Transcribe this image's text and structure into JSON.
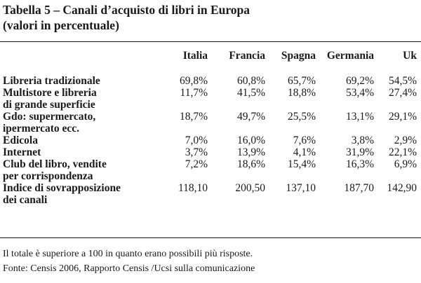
{
  "title": {
    "line1": "Tabella 5 – Canali d’acquisto di libri in Europa",
    "line2": "(valori in percentuale)"
  },
  "table": {
    "columns": [
      "",
      "Italia",
      "Francia",
      "Spagna",
      "Germania",
      "Uk"
    ],
    "rows": [
      {
        "label1": "Libreria tradizionale",
        "label2": "",
        "values": [
          "69,8%",
          "60,8%",
          "65,7%",
          "69,2%",
          "54,5%"
        ]
      },
      {
        "label1": "Multistore e libreria",
        "label2": "di grande superficie",
        "values": [
          "11,7%",
          "41,5%",
          "18,8%",
          "53,4%",
          "27,4%"
        ]
      },
      {
        "label1": "Gdo: supermercato,",
        "label2": "ipermercato ecc.",
        "values": [
          "18,7%",
          "49,7%",
          "25,5%",
          "13,1%",
          "29,1%"
        ]
      },
      {
        "label1": "Edicola",
        "label2": "",
        "values": [
          "7,0%",
          "16,0%",
          "7,6%",
          "3,8%",
          "2,9%"
        ]
      },
      {
        "label1": "Internet",
        "label2": "",
        "values": [
          "3,7%",
          "13,9%",
          "4,1%",
          "31,9%",
          "22,1%"
        ]
      },
      {
        "label1": "Club del libro, vendite",
        "label2": "per corrispondenza",
        "values": [
          "7,2%",
          "18,6%",
          "15,4%",
          "16,3%",
          "6,9%"
        ]
      },
      {
        "label1": "Indice di sovrapposizione",
        "label2": "dei canali",
        "values": [
          "118,10",
          "200,50",
          "137,10",
          "187,70",
          "142,90"
        ]
      }
    ]
  },
  "notes": {
    "note": "Il totale è superiore a 100 in quanto erano possibili più risposte.",
    "source": "Fonte: Censis 2006, Rapporto Censis /Ucsi sulla comunicazione"
  }
}
